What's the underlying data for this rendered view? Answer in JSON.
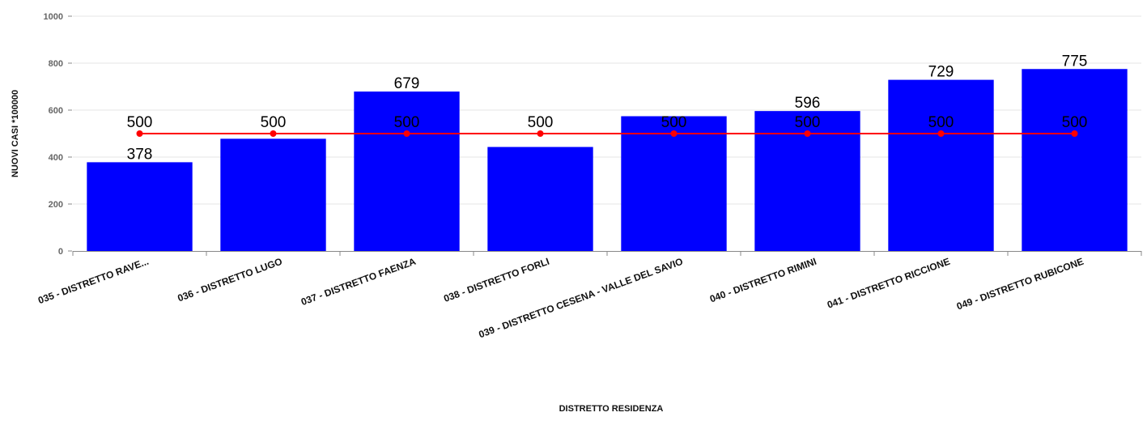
{
  "chart_data": {
    "type": "bar",
    "title": "",
    "xlabel": "DISTRETTO RESIDENZA",
    "ylabel": "NUOVI CASI *100000",
    "ylim": [
      0,
      1000
    ],
    "yticks": [
      0,
      200,
      400,
      600,
      800,
      1000
    ],
    "ytick_labels": [
      "0",
      "200",
      "400",
      "600",
      "800",
      "1000"
    ],
    "grid": true,
    "legend": "none",
    "categories": [
      "035 - DISTRETTO RAVE...",
      "036 - DISTRETTO LUGO",
      "037 - DISTRETTO FAENZA",
      "038 - DISTRETTO FORLI",
      "039 - DISTRETTO CESENA - VALLE DEL SAVIO",
      "040 - DISTRETTO RIMINI",
      "041 - DISTRETTO RICCIONE",
      "049 - DISTRETTO RUBICONE"
    ],
    "series": [
      {
        "type": "bar",
        "color": "#0000ff",
        "values": [
          378,
          478,
          679,
          443,
          574,
          596,
          729,
          775
        ],
        "data_labels": [
          "378",
          "",
          "679",
          "",
          "",
          "596",
          "729",
          "775"
        ]
      },
      {
        "type": "line",
        "color": "#ff0000",
        "values": [
          500,
          500,
          500,
          500,
          500,
          500,
          500,
          500
        ],
        "data_labels": [
          "500",
          "500",
          "500",
          "500",
          "500",
          "500",
          "500",
          "500"
        ]
      }
    ]
  }
}
